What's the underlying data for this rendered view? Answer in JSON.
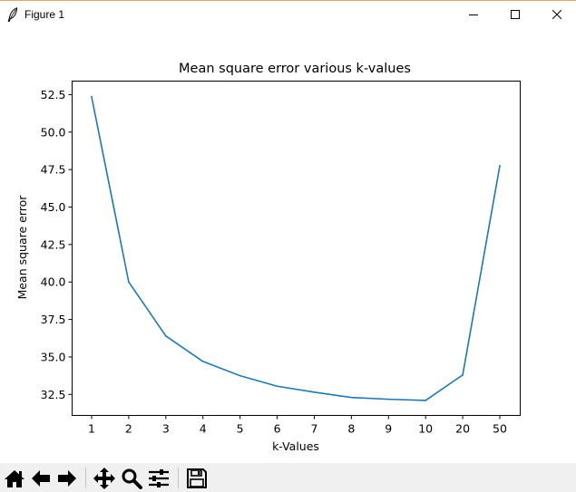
{
  "window": {
    "title": "Figure 1",
    "icons": {
      "app": "feather-icon",
      "minimize": "minimize-icon",
      "maximize": "maximize-icon",
      "close": "close-icon"
    }
  },
  "toolbar": {
    "tools": [
      {
        "name": "home-icon"
      },
      {
        "name": "back-arrow-icon"
      },
      {
        "name": "forward-arrow-icon"
      },
      {
        "name": "pan-move-icon"
      },
      {
        "name": "zoom-magnifier-icon"
      },
      {
        "name": "configure-subplots-icon"
      },
      {
        "name": "save-floppy-icon"
      }
    ]
  },
  "chart_data": {
    "type": "line",
    "title": "Mean square error various k-values",
    "xlabel": "k-Values",
    "ylabel": "Mean square error",
    "categories": [
      "1",
      "2",
      "3",
      "4",
      "5",
      "6",
      "7",
      "8",
      "9",
      "10",
      "20",
      "50"
    ],
    "values": [
      52.35,
      40.0,
      36.4,
      34.7,
      33.75,
      33.05,
      32.65,
      32.3,
      32.18,
      32.1,
      33.8,
      47.75
    ],
    "ylim": [
      31.1,
      53.4
    ],
    "yticks": [
      "32.5",
      "35.0",
      "37.5",
      "40.0",
      "42.5",
      "45.0",
      "47.5",
      "50.0",
      "52.5"
    ],
    "ytick_values": [
      32.5,
      35.0,
      37.5,
      40.0,
      42.5,
      45.0,
      47.5,
      50.0,
      52.5
    ],
    "grid": false,
    "line_color": "#1f77b4"
  }
}
